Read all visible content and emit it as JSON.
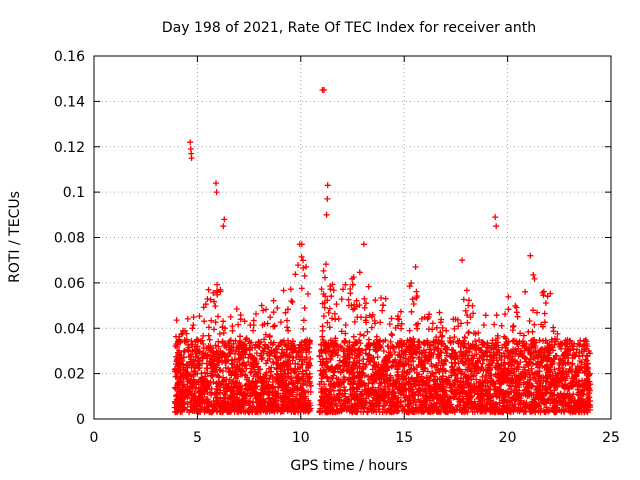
{
  "chart_data": {
    "type": "scatter",
    "title": "Day 198 of 2021, Rate Of TEC Index for receiver anth",
    "xlabel": "GPS time / hours",
    "ylabel": "ROTI / TECUs",
    "xlim": [
      0,
      25
    ],
    "ylim": [
      0,
      0.16
    ],
    "x_ticks": [
      0,
      5,
      10,
      15,
      20,
      25
    ],
    "x_tick_labels": [
      "0",
      "5",
      "10",
      "15",
      "20",
      "25"
    ],
    "y_ticks": [
      0,
      0.02,
      0.04,
      0.06,
      0.08,
      0.1,
      0.12,
      0.14,
      0.16
    ],
    "y_tick_labels": [
      "0",
      "0.02",
      "0.04",
      "0.06",
      "0.08",
      "0.1",
      "0.12",
      "0.14",
      "0.16"
    ],
    "grid": true,
    "marker": "+",
    "color": "#ff0000",
    "segments": [
      {
        "start": 3.9,
        "end": 10.5
      },
      {
        "start": 10.9,
        "end": 24.0
      }
    ],
    "baseline_range": [
      0.003,
      0.035
    ],
    "envelope": [
      [
        3.9,
        0.046
      ],
      [
        4.3,
        0.04
      ],
      [
        4.7,
        0.048
      ],
      [
        5.0,
        0.044
      ],
      [
        5.5,
        0.058
      ],
      [
        6.0,
        0.06
      ],
      [
        6.5,
        0.05
      ],
      [
        7.0,
        0.05
      ],
      [
        7.5,
        0.06
      ],
      [
        8.0,
        0.052
      ],
      [
        8.5,
        0.05
      ],
      [
        9.0,
        0.06
      ],
      [
        9.5,
        0.058
      ],
      [
        10.0,
        0.075
      ],
      [
        10.5,
        0.065
      ],
      [
        10.9,
        0.06
      ],
      [
        11.2,
        0.075
      ],
      [
        11.5,
        0.06
      ],
      [
        12.0,
        0.058
      ],
      [
        12.5,
        0.062
      ],
      [
        13.0,
        0.075
      ],
      [
        13.5,
        0.06
      ],
      [
        14.0,
        0.055
      ],
      [
        14.5,
        0.05
      ],
      [
        15.0,
        0.058
      ],
      [
        15.5,
        0.065
      ],
      [
        16.0,
        0.045
      ],
      [
        16.5,
        0.048
      ],
      [
        17.0,
        0.046
      ],
      [
        17.5,
        0.05
      ],
      [
        18.0,
        0.065
      ],
      [
        18.5,
        0.046
      ],
      [
        19.0,
        0.048
      ],
      [
        19.5,
        0.048
      ],
      [
        20.0,
        0.055
      ],
      [
        20.5,
        0.05
      ],
      [
        21.0,
        0.07
      ],
      [
        21.5,
        0.058
      ],
      [
        22.0,
        0.06
      ],
      [
        22.5,
        0.04
      ],
      [
        23.0,
        0.036
      ],
      [
        23.5,
        0.033
      ],
      [
        24.0,
        0.032
      ]
    ],
    "outliers": [
      {
        "x": 4.65,
        "y": 0.122
      },
      {
        "x": 4.68,
        "y": 0.119
      },
      {
        "x": 4.7,
        "y": 0.117
      },
      {
        "x": 4.72,
        "y": 0.115
      },
      {
        "x": 5.9,
        "y": 0.104
      },
      {
        "x": 5.93,
        "y": 0.1
      },
      {
        "x": 6.3,
        "y": 0.088
      },
      {
        "x": 6.25,
        "y": 0.085
      },
      {
        "x": 11.05,
        "y": 0.145
      },
      {
        "x": 11.12,
        "y": 0.145
      },
      {
        "x": 11.3,
        "y": 0.103
      },
      {
        "x": 11.28,
        "y": 0.097
      },
      {
        "x": 11.25,
        "y": 0.09
      },
      {
        "x": 19.4,
        "y": 0.089
      },
      {
        "x": 19.45,
        "y": 0.085
      },
      {
        "x": 9.95,
        "y": 0.077
      },
      {
        "x": 10.05,
        "y": 0.077
      },
      {
        "x": 13.05,
        "y": 0.077
      },
      {
        "x": 21.1,
        "y": 0.072
      },
      {
        "x": 17.8,
        "y": 0.07
      },
      {
        "x": 15.55,
        "y": 0.067
      }
    ]
  }
}
